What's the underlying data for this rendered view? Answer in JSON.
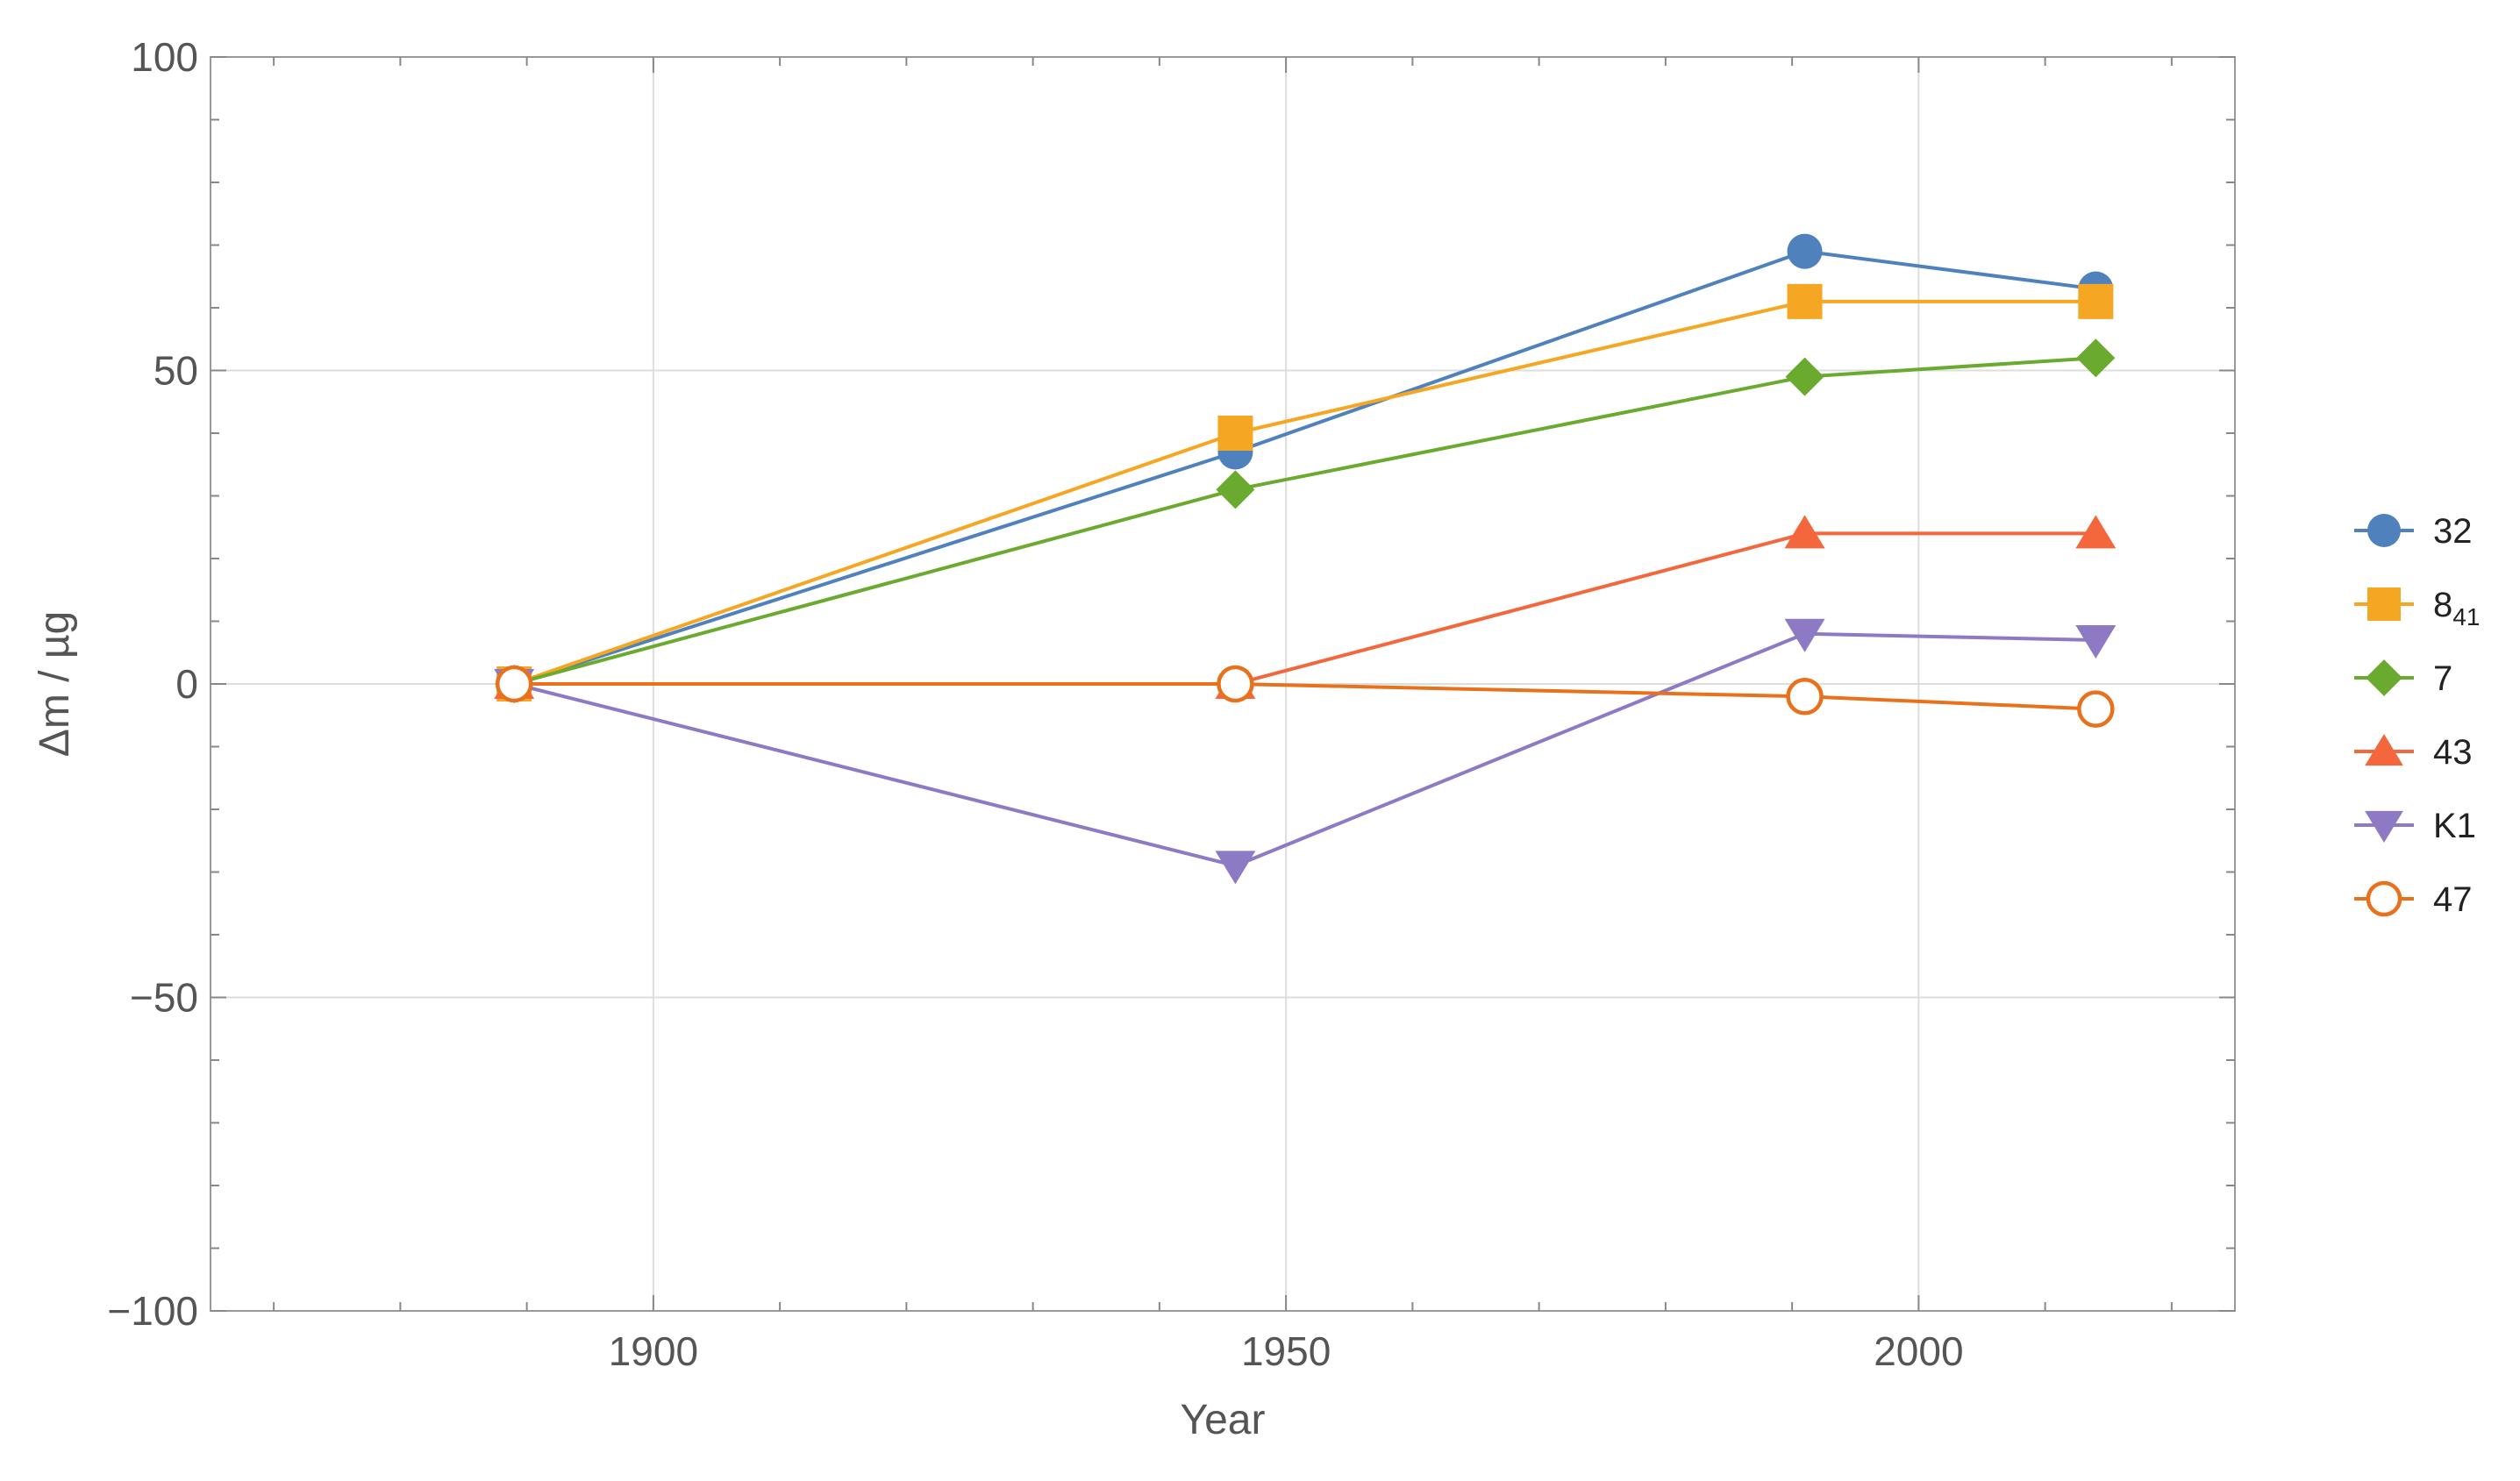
{
  "chart_data": {
    "type": "line",
    "title": "",
    "xlabel": "Year",
    "ylabel": "Δm / µg",
    "xlim": [
      1865,
      2025
    ],
    "ylim": [
      -100,
      100
    ],
    "x_ticks_major": [
      1900,
      1950,
      2000
    ],
    "x_tick_labels": [
      "1900",
      "1950",
      "2000"
    ],
    "y_ticks_major": [
      -100,
      -50,
      0,
      50,
      100
    ],
    "y_tick_labels": [
      "−100",
      "−50",
      "0",
      "50",
      "100"
    ],
    "x_minor_step": 10,
    "y_minor_step": 10,
    "grid": true,
    "legend_position": "right",
    "x": [
      1889,
      1946,
      1991,
      2014
    ],
    "series": [
      {
        "name": "32",
        "legend_main": "32",
        "legend_sub": "",
        "marker": "circle",
        "color": "#4f81bd",
        "values": [
          0,
          37,
          69,
          63
        ]
      },
      {
        "name": "841",
        "legend_main": "8",
        "legend_sub": "41",
        "marker": "square",
        "color": "#f5a623",
        "values": [
          0,
          40,
          61,
          61
        ]
      },
      {
        "name": "7",
        "legend_main": "7",
        "legend_sub": "",
        "marker": "diamond",
        "color": "#6aaa2e",
        "values": [
          0,
          31,
          49,
          52
        ]
      },
      {
        "name": "43",
        "legend_main": "43",
        "legend_sub": "",
        "marker": "triangle-up",
        "color": "#f4663c",
        "values": [
          0,
          0,
          24,
          24
        ]
      },
      {
        "name": "K1",
        "legend_main": "K1",
        "legend_sub": "",
        "marker": "triangle-down",
        "color": "#8e79c4",
        "values": [
          0,
          -29,
          8,
          7
        ]
      },
      {
        "name": "47",
        "legend_main": "47",
        "legend_sub": "",
        "marker": "open-circle",
        "color": "#e8711c",
        "values": [
          0,
          0,
          -2,
          -4
        ]
      }
    ]
  }
}
